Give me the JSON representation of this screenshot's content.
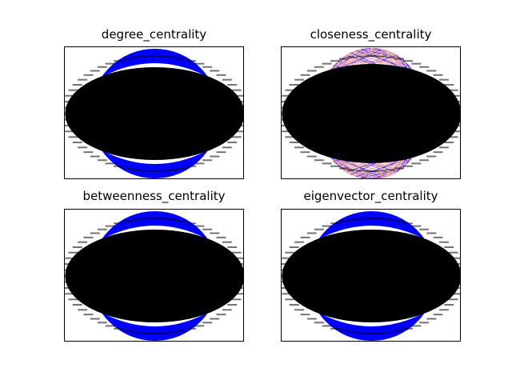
{
  "figure": {
    "background": "#ffffff"
  },
  "panels": [
    {
      "id": "degree",
      "title": "degree_centrality",
      "edge_style": "solid",
      "edge_color": "#0000ff",
      "node_color": "#000000"
    },
    {
      "id": "closeness",
      "title": "closeness_centrality",
      "edge_style": "mixed",
      "edge_color": "#0000ff",
      "edge_color_secondary": "#e8a0a8",
      "node_color": "#000000"
    },
    {
      "id": "betweenness",
      "title": "betweenness_centrality",
      "edge_style": "solid",
      "edge_color": "#0000ff",
      "node_color": "#000000"
    },
    {
      "id": "eigenvector",
      "title": "eigenvector_centrality",
      "edge_style": "solid",
      "edge_color": "#0000ff",
      "node_color": "#000000"
    }
  ]
}
